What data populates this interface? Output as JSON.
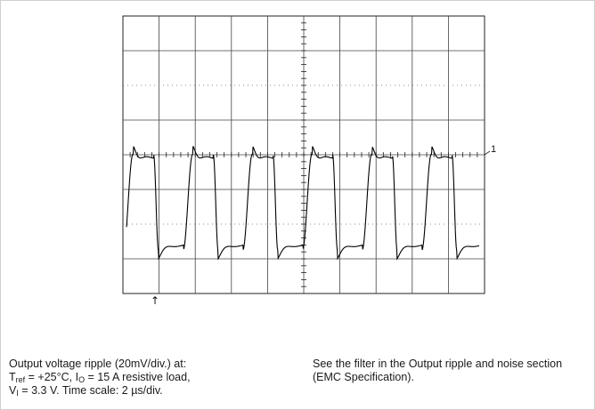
{
  "chart_data": {
    "type": "line",
    "title": "",
    "xlabel": "",
    "ylabel": "",
    "grid": true,
    "divisions": {
      "x": 10,
      "y": 8
    },
    "time_per_div_us": 2,
    "volts_per_div_mV": 20,
    "xlim_us": [
      0,
      20
    ],
    "ylim_mV": [
      -80,
      80
    ],
    "channel_marker": "1",
    "channel_reference_mV": 0,
    "trigger_marker": "↑",
    "series": [
      {
        "period_us": 3.3,
        "phase_us": 0.05,
        "high_mV": 0,
        "low_mV": -55,
        "overshoot_mV": 5,
        "undershoot_mV": -5,
        "start_us": 0.2,
        "end_us": 19.7
      }
    ]
  },
  "caption": {
    "left": {
      "line1": "Output voltage ripple (20mV/div.) at:",
      "t_sym": "T",
      "t_sub": "ref",
      "t_val": " = +25°C, I",
      "i_sub": "O",
      "i_val": " = 15 A resistive load,",
      "v_sym": "V",
      "v_sub": "I",
      "v_val": " = 3.3 V. Time scale: 2 µs/div."
    },
    "right": {
      "text": "See the filter in the Output ripple and noise section (EMC Specification)."
    }
  }
}
